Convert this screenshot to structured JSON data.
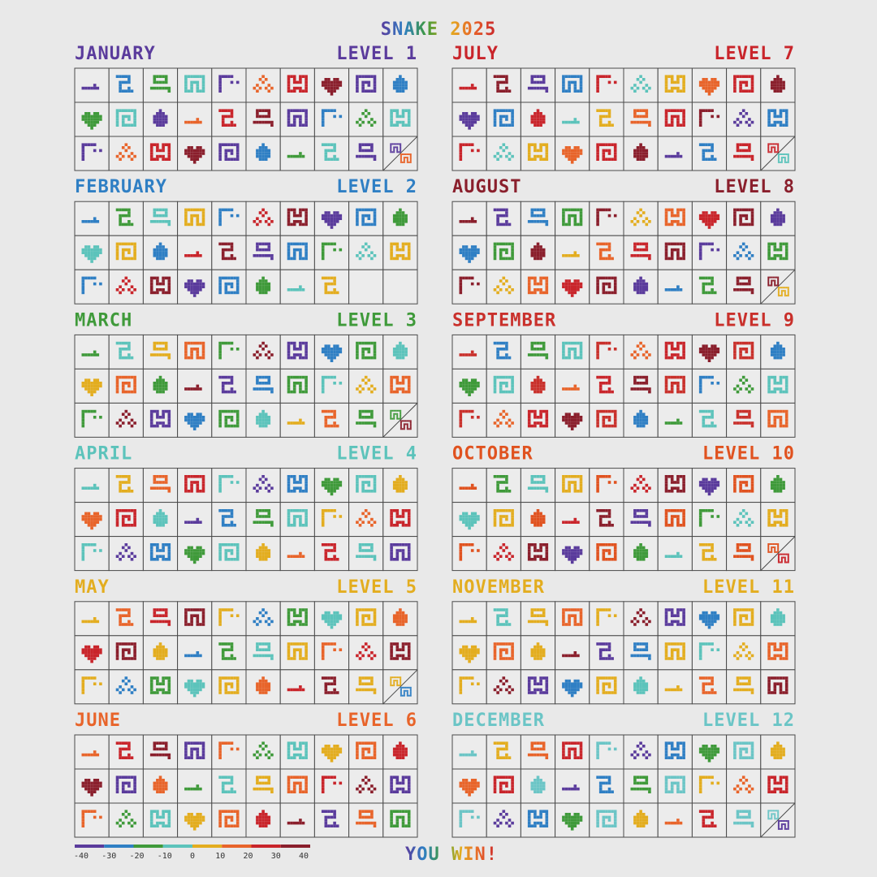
{
  "title": "SNAKE 2025",
  "months": [
    {
      "name": "JANUARY",
      "level": "LEVEL 1",
      "color": "#5a3b9c"
    },
    {
      "name": "FEBRUARY",
      "level": "LEVEL 2",
      "color": "#2f7fc4"
    },
    {
      "name": "MARCH",
      "level": "LEVEL 3",
      "color": "#3f9a3a"
    },
    {
      "name": "APRIL",
      "level": "LEVEL 4",
      "color": "#5cc3bb"
    },
    {
      "name": "MAY",
      "level": "LEVEL 5",
      "color": "#e3ad1f"
    },
    {
      "name": "JUNE",
      "level": "LEVEL 6",
      "color": "#e8642a"
    },
    {
      "name": "JULY",
      "level": "LEVEL 7",
      "color": "#c9252b"
    },
    {
      "name": "AUGUST",
      "level": "LEVEL 8",
      "color": "#8a1f2c"
    },
    {
      "name": "SEPTEMBER",
      "level": "LEVEL 9",
      "color": "#c9302b"
    },
    {
      "name": "OCTOBER",
      "level": "LEVEL 10",
      "color": "#e0521f"
    },
    {
      "name": "NOVEMBER",
      "level": "LEVEL 11",
      "color": "#e3ad1f"
    },
    {
      "name": "DECEMBER",
      "level": "LEVEL 12",
      "color": "#6bc5c6"
    }
  ],
  "footer": "YOU WIN!",
  "scale": [
    -40,
    -30,
    -20,
    -10,
    0,
    10,
    20,
    30,
    40
  ]
}
